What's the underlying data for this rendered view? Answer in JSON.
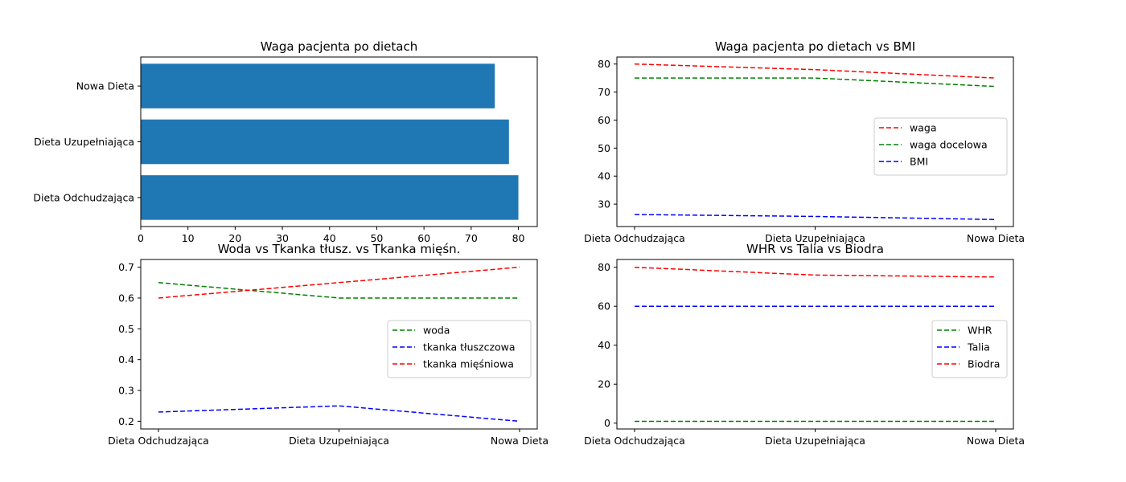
{
  "chart_data": [
    {
      "type": "bar",
      "orientation": "horizontal",
      "title": "Waga pacjenta po dietach",
      "categories": [
        "Dieta Odchudzająca",
        "Dieta Uzupełniająca",
        "Nowa Dieta"
      ],
      "values": [
        80,
        78,
        75
      ],
      "xlim": [
        0,
        84
      ],
      "xticks": [
        "0",
        "10",
        "20",
        "30",
        "40",
        "50",
        "60",
        "70",
        "80"
      ],
      "color": "#1f77b4",
      "grid": false
    },
    {
      "type": "line",
      "title": "Waga pacjenta po dietach vs BMI",
      "x": [
        "Dieta Odchudzająca",
        "Dieta Uzupełniająca",
        "Nowa Dieta"
      ],
      "series": [
        {
          "name": "waga",
          "values": [
            80,
            78,
            75
          ],
          "color": "#ff0000",
          "style": "dashed"
        },
        {
          "name": "waga docelowa",
          "values": [
            75,
            75,
            72
          ],
          "color": "#008000",
          "style": "dashed"
        },
        {
          "name": "BMI",
          "values": [
            26.3,
            25.6,
            24.5
          ],
          "color": "#0000ff",
          "style": "dashed"
        }
      ],
      "ylim": [
        22,
        82.5
      ],
      "yticks": [
        "30",
        "40",
        "50",
        "60",
        "70",
        "80"
      ],
      "legend": "center-right",
      "grid": false
    },
    {
      "type": "line",
      "title": "Woda vs Tkanka tłusz. vs Tkanka mięśn.",
      "x": [
        "Dieta Odchudzająca",
        "Dieta Uzupełniająca",
        "Nowa Dieta"
      ],
      "series": [
        {
          "name": "woda",
          "values": [
            0.65,
            0.6,
            0.6
          ],
          "color": "#008000",
          "style": "dashed"
        },
        {
          "name": "tkanka tłuszczowa",
          "values": [
            0.23,
            0.25,
            0.2
          ],
          "color": "#0000ff",
          "style": "dashed"
        },
        {
          "name": "tkanka mięśniowa",
          "values": [
            0.6,
            0.65,
            0.7
          ],
          "color": "#ff0000",
          "style": "dashed"
        }
      ],
      "ylim": [
        0.175,
        0.725
      ],
      "yticks": [
        "0.2",
        "0.3",
        "0.4",
        "0.5",
        "0.6",
        "0.7"
      ],
      "legend": "center-right",
      "grid": false
    },
    {
      "type": "line",
      "title": "WHR vs Talia vs Biodra",
      "x": [
        "Dieta Odchudzająca",
        "Dieta Uzupełniająca",
        "Nowa Dieta"
      ],
      "series": [
        {
          "name": "WHR",
          "values": [
            0.9,
            0.9,
            0.9
          ],
          "color": "#008000",
          "style": "dashed"
        },
        {
          "name": "Talia",
          "values": [
            60,
            60,
            60
          ],
          "color": "#0000ff",
          "style": "dashed"
        },
        {
          "name": "Biodra",
          "values": [
            80,
            76,
            75
          ],
          "color": "#ff0000",
          "style": "dashed"
        }
      ],
      "ylim": [
        -3,
        84
      ],
      "yticks": [
        "0",
        "20",
        "40",
        "60",
        "80"
      ],
      "legend": "center-right",
      "grid": false
    }
  ]
}
